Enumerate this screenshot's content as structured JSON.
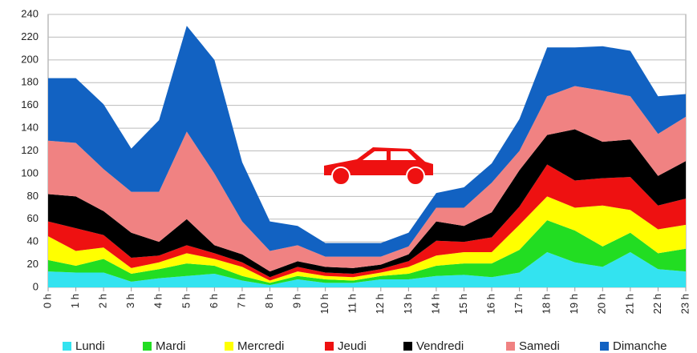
{
  "chart_data": {
    "type": "stacked_area",
    "categories": [
      "0 h",
      "1 h",
      "2 h",
      "3 h",
      "4 h",
      "5 h",
      "6 h",
      "7 h",
      "8 h",
      "9 h",
      "10 h",
      "11 h",
      "12 h",
      "13 h",
      "14 h",
      "15 h",
      "16 h",
      "17 h",
      "18 h",
      "19 h",
      "20 h",
      "21 h",
      "22 h",
      "23 h"
    ],
    "series": [
      {
        "name": "Lundi",
        "color": "#33e3f0",
        "values": [
          14,
          13,
          13,
          5,
          8,
          10,
          12,
          6,
          2,
          7,
          4,
          4,
          7,
          7,
          10,
          11,
          9,
          13,
          31,
          22,
          18,
          31,
          16,
          14
        ]
      },
      {
        "name": "Mardi",
        "color": "#22dd22",
        "values": [
          10,
          6,
          12,
          7,
          8,
          11,
          7,
          4,
          2,
          3,
          3,
          2,
          3,
          5,
          9,
          10,
          12,
          20,
          28,
          28,
          18,
          17,
          14,
          20
        ]
      },
      {
        "name": "Mercredi",
        "color": "#ffff00",
        "values": [
          21,
          13,
          10,
          5,
          6,
          9,
          6,
          8,
          2,
          4,
          3,
          3,
          3,
          6,
          9,
          10,
          10,
          22,
          21,
          20,
          36,
          20,
          21,
          21
        ]
      },
      {
        "name": "Jeudi",
        "color": "#ee1111",
        "values": [
          13,
          20,
          11,
          9,
          6,
          7,
          5,
          4,
          3,
          4,
          3,
          3,
          3,
          5,
          13,
          9,
          13,
          16,
          28,
          24,
          24,
          29,
          21,
          23
        ]
      },
      {
        "name": "Vendredi",
        "color": "#000000",
        "values": [
          24,
          28,
          21,
          22,
          12,
          23,
          7,
          7,
          5,
          5,
          5,
          5,
          4,
          6,
          17,
          14,
          22,
          32,
          26,
          45,
          32,
          33,
          26,
          33
        ]
      },
      {
        "name": "Samedi",
        "color": "#f08282",
        "values": [
          47,
          47,
          37,
          36,
          44,
          77,
          63,
          29,
          18,
          14,
          9,
          10,
          7,
          7,
          12,
          16,
          26,
          17,
          34,
          38,
          45,
          38,
          37,
          39
        ]
      },
      {
        "name": "Dimanche",
        "color": "#1262c2",
        "values": [
          55,
          57,
          57,
          38,
          63,
          93,
          100,
          52,
          26,
          17,
          12,
          12,
          12,
          12,
          13,
          18,
          17,
          28,
          43,
          34,
          39,
          40,
          33,
          20
        ]
      }
    ],
    "ylim": [
      0,
      240
    ],
    "yticks": [
      0,
      20,
      40,
      60,
      80,
      100,
      120,
      140,
      160,
      180,
      200,
      220,
      240
    ],
    "grid": true,
    "legend": "bottom"
  }
}
